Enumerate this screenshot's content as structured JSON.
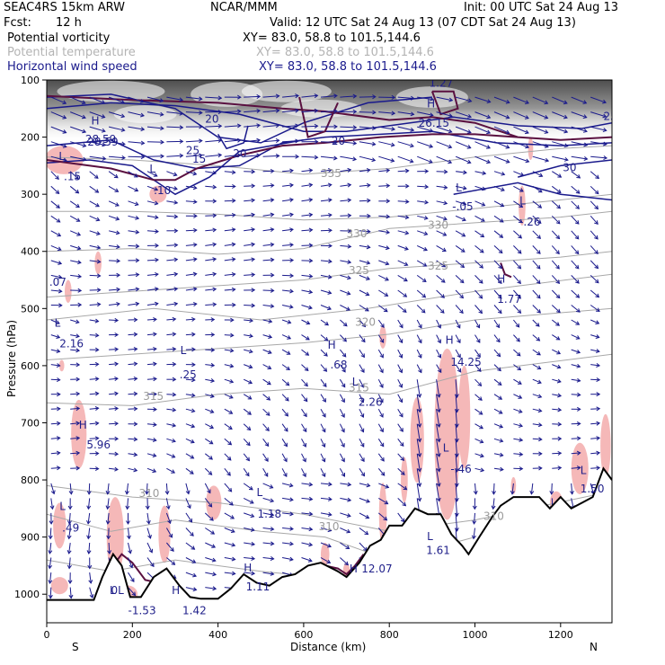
{
  "header": {
    "model": "SEAC4RS 15km ARW",
    "center": "NCAR/MMM",
    "init": "Init: 00 UTC Sat 24 Aug 13",
    "fcst_label": "Fcst:",
    "fcst_value": "12 h",
    "valid": "Valid: 12 UTC Sat 24 Aug 13 (07 CDT Sat 24 Aug 13)",
    "fields": [
      {
        "name": "Potential vorticity",
        "xy": "XY=  83.0, 58.8 to 101.5,144.6"
      },
      {
        "name": "Potential temperature",
        "xy": "XY=  83.0, 58.8 to 101.5,144.6"
      },
      {
        "name": "Horizontal wind speed",
        "xy": "XY=  83.0, 58.8 to 101.5,144.6"
      }
    ]
  },
  "colors": {
    "pv_fill": "#f5b8b8",
    "pv_contour": "#5a1040",
    "theta_contour": "#a8a8a8",
    "wind_contour": "#1a1a8c",
    "vector": "#1a1a8c",
    "terrain": "#000000"
  },
  "chart_data": {
    "type": "cross-section",
    "xlabel": "Distance (km)",
    "ylabel": "Pressure (hPa)",
    "xlim": [
      0,
      1320
    ],
    "ylim": [
      1050,
      100
    ],
    "x_ticks": [
      0,
      200,
      400,
      600,
      800,
      1000,
      1200
    ],
    "y_ticks": [
      100,
      200,
      300,
      400,
      500,
      600,
      700,
      800,
      900,
      1000
    ],
    "x_end_labels": {
      "left": "S",
      "right": "N"
    },
    "theta_labels": [
      {
        "text": "335",
        "x": 640,
        "p": 270
      },
      {
        "text": "330",
        "x": 700,
        "p": 375
      },
      {
        "text": "330",
        "x": 890,
        "p": 360
      },
      {
        "text": "325",
        "x": 705,
        "p": 440
      },
      {
        "text": "325",
        "x": 890,
        "p": 432
      },
      {
        "text": "320",
        "x": 720,
        "p": 530
      },
      {
        "text": "315",
        "x": 225,
        "p": 660
      },
      {
        "text": "315",
        "x": 705,
        "p": 645
      },
      {
        "text": "310",
        "x": 215,
        "p": 830
      },
      {
        "text": "310",
        "x": 635,
        "p": 888
      },
      {
        "text": "310",
        "x": 1020,
        "p": 870
      }
    ],
    "wind_labels": [
      {
        "text": "20",
        "x": 370,
        "p": 175
      },
      {
        "text": "25",
        "x": 325,
        "p": 230
      },
      {
        "text": "15",
        "x": 340,
        "p": 245
      },
      {
        "text": "20",
        "x": 435,
        "p": 235
      },
      {
        "text": "20",
        "x": 665,
        "p": 213
      },
      {
        "text": "30",
        "x": 1205,
        "p": 260
      },
      {
        "text": "28.59",
        "x": 95,
        "p": 215
      },
      {
        "text": "25",
        "x": 1300,
        "p": 170
      }
    ],
    "pv_labels": [
      {
        "text": "H",
        "x": 104,
        "p": 178
      },
      {
        "text": "28.59",
        "x": 90,
        "p": 210
      },
      {
        "text": "L",
        "x": 28,
        "p": 240
      },
      {
        "text": ".15",
        "x": 40,
        "p": 275
      },
      {
        "text": "L",
        "x": 240,
        "p": 262
      },
      {
        "text": ".10",
        "x": 250,
        "p": 300
      },
      {
        "text": "H",
        "x": 888,
        "p": 148
      },
      {
        "text": "26.15",
        "x": 868,
        "p": 182
      },
      {
        "text": "1.27",
        "x": 893,
        "p": 112
      },
      {
        "text": "L",
        "x": 955,
        "p": 295
      },
      {
        "text": "-.05",
        "x": 947,
        "p": 328
      },
      {
        "text": "L",
        "x": 1104,
        "p": 318
      },
      {
        "text": "-.26",
        "x": 1104,
        "p": 355
      },
      {
        "text": ".07",
        "x": 6,
        "p": 460
      },
      {
        "text": "H",
        "x": 1052,
        "p": 455
      },
      {
        "text": "1.77",
        "x": 1052,
        "p": 490
      },
      {
        "text": "L",
        "x": 18,
        "p": 532
      },
      {
        "text": "2.16",
        "x": 30,
        "p": 568
      },
      {
        "text": "L",
        "x": 312,
        "p": 580
      },
      {
        "text": ".25",
        "x": 310,
        "p": 622
      },
      {
        "text": "H",
        "x": 656,
        "p": 570
      },
      {
        "text": ".68",
        "x": 662,
        "p": 605
      },
      {
        "text": "H",
        "x": 931,
        "p": 562
      },
      {
        "text": "14.25",
        "x": 943,
        "p": 600
      },
      {
        "text": "L",
        "x": 713,
        "p": 635
      },
      {
        "text": "2.26",
        "x": 728,
        "p": 670
      },
      {
        "text": "H",
        "x": 75,
        "p": 710
      },
      {
        "text": "5.96",
        "x": 93,
        "p": 745
      },
      {
        "text": "L",
        "x": 925,
        "p": 750
      },
      {
        "text": "-.46",
        "x": 943,
        "p": 787
      },
      {
        "text": "L",
        "x": 1246,
        "p": 790
      },
      {
        "text": "1.50",
        "x": 1246,
        "p": 822
      },
      {
        "text": "L",
        "x": 30,
        "p": 853
      },
      {
        "text": ".49",
        "x": 36,
        "p": 890
      },
      {
        "text": "L",
        "x": 490,
        "p": 828
      },
      {
        "text": "1.18",
        "x": 492,
        "p": 866
      },
      {
        "text": "L",
        "x": 888,
        "p": 905
      },
      {
        "text": "1.61",
        "x": 886,
        "p": 930
      },
      {
        "text": "H",
        "x": 460,
        "p": 960
      },
      {
        "text": "1.11",
        "x": 465,
        "p": 993
      },
      {
        "text": "H",
        "x": 707,
        "p": 962
      },
      {
        "text": "12.07",
        "x": 735,
        "p": 962
      },
      {
        "text": "L",
        "x": 147,
        "p": 1000
      },
      {
        "text": "-1.53",
        "x": 190,
        "p": 1035
      },
      {
        "text": "H",
        "x": 292,
        "p": 1000
      },
      {
        "text": "1.42",
        "x": 317,
        "p": 1035
      },
      {
        "text": "0L",
        "x": 150,
        "p": 1000
      }
    ],
    "terrain_p": [
      [
        0,
        1010
      ],
      [
        60,
        1010
      ],
      [
        110,
        1010
      ],
      [
        130,
        970
      ],
      [
        155,
        930
      ],
      [
        175,
        950
      ],
      [
        195,
        1005
      ],
      [
        220,
        1005
      ],
      [
        250,
        970
      ],
      [
        280,
        955
      ],
      [
        310,
        985
      ],
      [
        335,
        1005
      ],
      [
        360,
        1008
      ],
      [
        400,
        1008
      ],
      [
        430,
        990
      ],
      [
        460,
        965
      ],
      [
        490,
        980
      ],
      [
        520,
        985
      ],
      [
        550,
        970
      ],
      [
        580,
        965
      ],
      [
        610,
        950
      ],
      [
        640,
        945
      ],
      [
        680,
        960
      ],
      [
        700,
        970
      ],
      [
        730,
        945
      ],
      [
        755,
        915
      ],
      [
        780,
        905
      ],
      [
        800,
        880
      ],
      [
        830,
        880
      ],
      [
        860,
        850
      ],
      [
        890,
        860
      ],
      [
        920,
        860
      ],
      [
        945,
        895
      ],
      [
        970,
        915
      ],
      [
        985,
        930
      ],
      [
        1010,
        900
      ],
      [
        1040,
        865
      ],
      [
        1060,
        845
      ],
      [
        1090,
        830
      ],
      [
        1120,
        830
      ],
      [
        1150,
        830
      ],
      [
        1175,
        850
      ],
      [
        1200,
        830
      ],
      [
        1225,
        850
      ],
      [
        1250,
        840
      ],
      [
        1275,
        830
      ],
      [
        1300,
        780
      ],
      [
        1320,
        800
      ]
    ]
  }
}
